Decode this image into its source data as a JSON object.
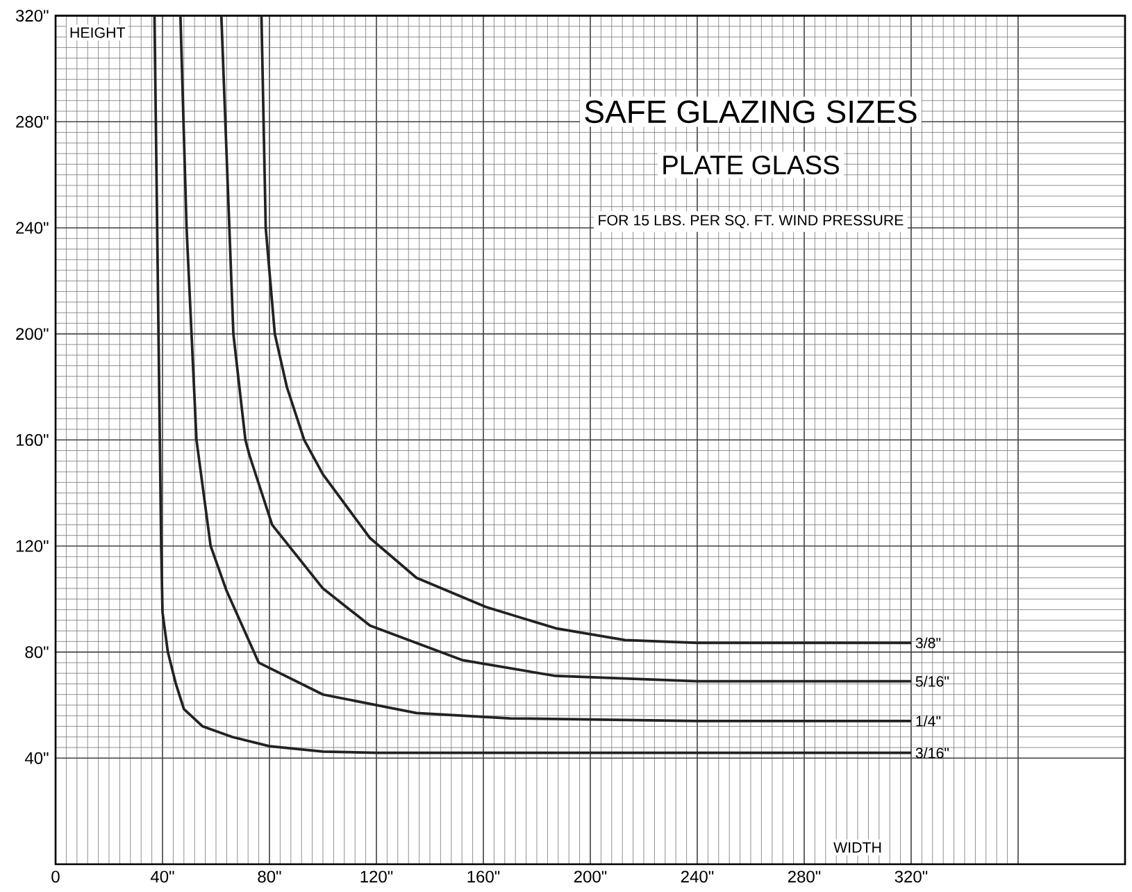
{
  "chart_data": {
    "type": "line",
    "title": "SAFE GLAZING SIZES",
    "subtitle": "PLATE GLASS",
    "annotations": [
      "FOR 15 LBS. PER SQ. FT. WIND PRESSURE"
    ],
    "xlabel": "WIDTH",
    "ylabel": "HEIGHT",
    "xlim": [
      0,
      400
    ],
    "ylim": [
      0,
      320
    ],
    "xticks": [
      {
        "value": 0,
        "label": "0"
      },
      {
        "value": 40,
        "label": "40\""
      },
      {
        "value": 80,
        "label": "80\""
      },
      {
        "value": 120,
        "label": "120\""
      },
      {
        "value": 160,
        "label": "160\""
      },
      {
        "value": 200,
        "label": "200\""
      },
      {
        "value": 240,
        "label": "240\""
      },
      {
        "value": 280,
        "label": "280\""
      },
      {
        "value": 320,
        "label": "320\""
      },
      {
        "value": 360,
        "label": null
      }
    ],
    "yticks": [
      {
        "value": 40,
        "label": "40\""
      },
      {
        "value": 80,
        "label": "80\""
      },
      {
        "value": 120,
        "label": "120\""
      },
      {
        "value": 160,
        "label": "160\""
      },
      {
        "value": 200,
        "label": "200\""
      },
      {
        "value": 240,
        "label": "240\""
      },
      {
        "value": 280,
        "label": "280\""
      },
      {
        "value": 320,
        "label": "320\""
      }
    ],
    "grid": true,
    "legend": false,
    "marker": "none",
    "line_style": "solid",
    "series": [
      {
        "name": "3/8\"",
        "color": "#222222",
        "x": [
          77,
          78.6,
          82,
          86.5,
          93,
          100,
          117.6,
          135,
          161,
          187,
          213,
          240,
          320
        ],
        "values": [
          320,
          240,
          200,
          180,
          160,
          147,
          123,
          108,
          97,
          89,
          84.5,
          83.5,
          83.5
        ]
      },
      {
        "name": "5/16\"",
        "color": "#222222",
        "x": [
          62,
          65,
          66.5,
          71,
          72.6,
          81,
          100,
          117.6,
          152,
          187,
          240,
          320
        ],
        "values": [
          320,
          240,
          200,
          160,
          154,
          128,
          104,
          90,
          77,
          71,
          69,
          69
        ]
      },
      {
        "name": "1/4\"",
        "color": "#222222",
        "x": [
          46.7,
          49,
          52.7,
          58,
          64,
          76,
          100,
          135,
          170,
          240,
          320
        ],
        "values": [
          320,
          240,
          160,
          120,
          103,
          76,
          64,
          57,
          55,
          54,
          54
        ]
      },
      {
        "name": "3/16\"",
        "color": "#222222",
        "x": [
          37,
          38,
          39,
          39.5,
          40,
          42,
          45,
          48,
          55,
          66,
          80,
          100,
          120,
          160,
          240,
          320
        ],
        "values": [
          320,
          240,
          160,
          120,
          95,
          80,
          68,
          58.5,
          52,
          48,
          44.5,
          42.5,
          42,
          42,
          42,
          42
        ]
      }
    ]
  }
}
